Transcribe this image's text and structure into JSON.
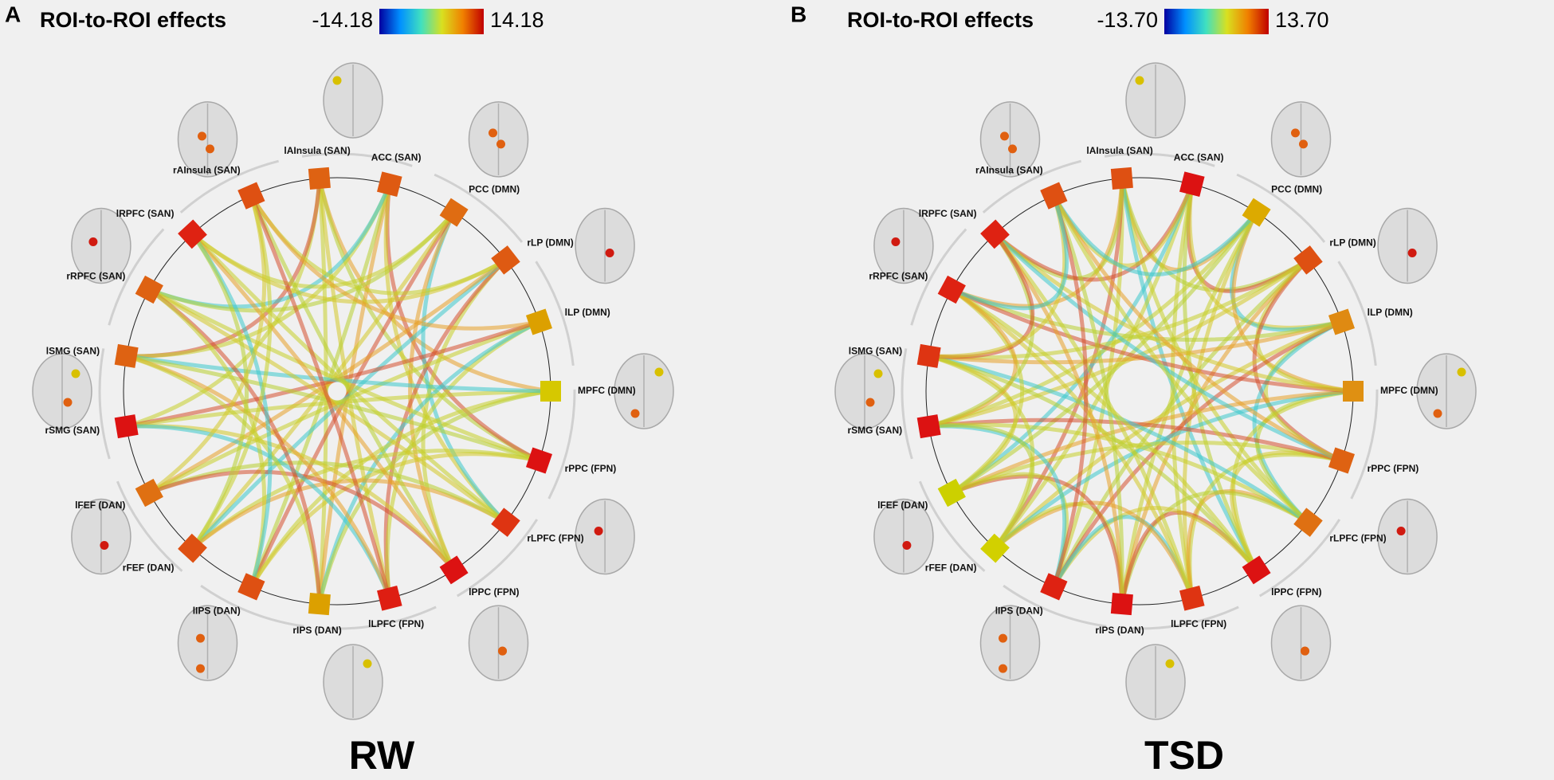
{
  "panels": [
    {
      "letter": "A",
      "legend_title": "ROI-to-ROI effects",
      "scale_min": {
        "value": -14.18,
        "label": "-14.18"
      },
      "scale_max": {
        "value": 14.18,
        "label": "14.18"
      },
      "title": "RW",
      "nodes": [
        {
          "label": "lAInsula (SAN)",
          "color": "#de6212"
        },
        {
          "label": "ACC (SAN)",
          "color": "#de5a12"
        },
        {
          "label": "PCC (DMN)",
          "color": "#df6c12"
        },
        {
          "label": "rLP (DMN)",
          "color": "#de5a12"
        },
        {
          "label": "lLP (DMN)",
          "color": "#dca000"
        },
        {
          "label": "MPFC (DMN)",
          "color": "#d6c800"
        },
        {
          "label": "rPPC (FPN)",
          "color": "#dc1212"
        },
        {
          "label": "rLPFC (FPN)",
          "color": "#de3412"
        },
        {
          "label": "lPPC (FPN)",
          "color": "#dc1212"
        },
        {
          "label": "lLPFC (FPN)",
          "color": "#de1e12"
        },
        {
          "label": "rIPS (DAN)",
          "color": "#dca000"
        },
        {
          "label": "lIPS (DAN)",
          "color": "#de5012"
        },
        {
          "label": "rFEF (DAN)",
          "color": "#de5012"
        },
        {
          "label": "lFEF (DAN)",
          "color": "#df7012"
        },
        {
          "label": "rSMG (SAN)",
          "color": "#dc1212"
        },
        {
          "label": "lSMG (SAN)",
          "color": "#de6212"
        },
        {
          "label": "rRPFC (SAN)",
          "color": "#de6212"
        },
        {
          "label": "lRPFC (SAN)",
          "color": "#de2212"
        },
        {
          "label": "rAInsula (SAN)",
          "color": "#de5012"
        }
      ]
    },
    {
      "letter": "B",
      "legend_title": "ROI-to-ROI effects",
      "scale_min": {
        "value": -13.7,
        "label": "-13.70"
      },
      "scale_max": {
        "value": 13.7,
        "label": "13.70"
      },
      "title": "TSD",
      "nodes": [
        {
          "label": "lAInsula (SAN)",
          "color": "#de5012"
        },
        {
          "label": "ACC (SAN)",
          "color": "#dc1212"
        },
        {
          "label": "PCC (DMN)",
          "color": "#dcaa00"
        },
        {
          "label": "rLP (DMN)",
          "color": "#de5012"
        },
        {
          "label": "lLP (DMN)",
          "color": "#df8a12"
        },
        {
          "label": "MPFC (DMN)",
          "color": "#df9012"
        },
        {
          "label": "rPPC (FPN)",
          "color": "#de6212"
        },
        {
          "label": "rLPFC (FPN)",
          "color": "#df7012"
        },
        {
          "label": "lPPC (FPN)",
          "color": "#dc1212"
        },
        {
          "label": "lLPFC (FPN)",
          "color": "#de3412"
        },
        {
          "label": "rIPS (DAN)",
          "color": "#dc1212"
        },
        {
          "label": "lIPS (DAN)",
          "color": "#de2212"
        },
        {
          "label": "rFEF (DAN)",
          "color": "#d2d000"
        },
        {
          "label": "lFEF (DAN)",
          "color": "#ccd000"
        },
        {
          "label": "rSMG (SAN)",
          "color": "#dc1212"
        },
        {
          "label": "lSMG (SAN)",
          "color": "#de3412"
        },
        {
          "label": "rRPFC (SAN)",
          "color": "#de2212"
        },
        {
          "label": "lRPFC (SAN)",
          "color": "#de2212"
        },
        {
          "label": "rAInsula (SAN)",
          "color": "#de5012"
        }
      ]
    }
  ]
}
